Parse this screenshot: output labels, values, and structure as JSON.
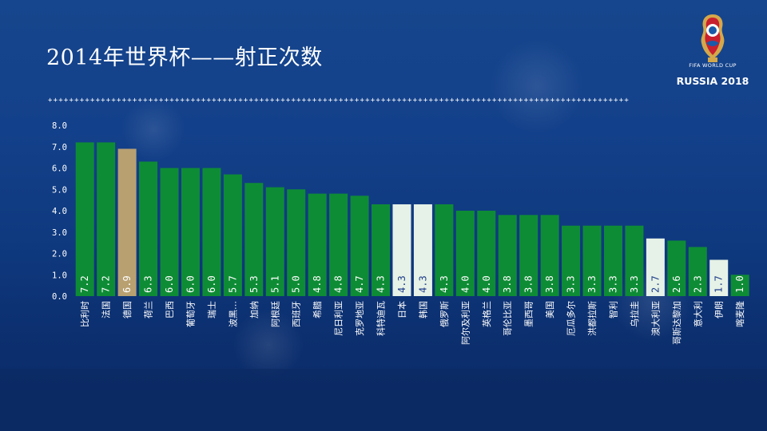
{
  "slide": {
    "title": "2014年世界杯——射正次数"
  },
  "logo": {
    "line1": "FIFA WORLD CUP",
    "line2": "RUSSIA 2018"
  },
  "divider_glyph": "+",
  "colors": {
    "bar_green": "#0e8c35",
    "bar_gold": "#b8a071",
    "bar_light": "#e6f2e7",
    "axis_text": "#ffffff",
    "value_text": "#ffffff",
    "value_text_dark": "#1d3c8a"
  },
  "chart_data": {
    "type": "bar",
    "title": "",
    "xlabel": "",
    "ylabel": "",
    "ylim": [
      0,
      8
    ],
    "yticks": [
      "0.0",
      "1.0",
      "2.0",
      "3.0",
      "4.0",
      "5.0",
      "6.0",
      "7.0",
      "8.0"
    ],
    "grid": false,
    "legend": "none",
    "categories": [
      "比利时",
      "法国",
      "德国",
      "荷兰",
      "巴西",
      "葡萄牙",
      "瑞士",
      "波黑…",
      "加纳",
      "阿根廷",
      "西班牙",
      "希腊",
      "尼日利亚",
      "克罗地亚",
      "科特迪瓦",
      "日本",
      "韩国",
      "俄罗斯",
      "阿尔及利亚",
      "英格兰",
      "哥伦比亚",
      "墨西哥",
      "美国",
      "厄瓜多尔",
      "洪都拉斯",
      "智利",
      "乌拉圭",
      "澳大利亚",
      "哥斯达黎加",
      "意大利",
      "伊朗",
      "喀麦隆"
    ],
    "values": [
      7.2,
      7.2,
      6.9,
      6.3,
      6.0,
      6.0,
      6.0,
      5.7,
      5.3,
      5.1,
      5.0,
      4.8,
      4.8,
      4.7,
      4.3,
      4.3,
      4.3,
      4.3,
      4.0,
      4.0,
      3.8,
      3.8,
      3.8,
      3.3,
      3.3,
      3.3,
      3.3,
      2.7,
      2.6,
      2.3,
      1.7,
      1.0
    ],
    "value_labels": [
      "7.2",
      "7.2",
      "6.9",
      "6.3",
      "6.0",
      "6.0",
      "6.0",
      "5.7",
      "5.3",
      "5.1",
      "5.0",
      "4.8",
      "4.8",
      "4.7",
      "4.3",
      "4.3",
      "4.3",
      "4.3",
      "4.0",
      "4.0",
      "3.8",
      "3.8",
      "3.8",
      "3.3",
      "3.3",
      "3.3",
      "3.3",
      "2.7",
      "2.6",
      "2.3",
      "1.7",
      "1.0"
    ],
    "bar_colors": [
      "green",
      "green",
      "gold",
      "green",
      "green",
      "green",
      "green",
      "green",
      "green",
      "green",
      "green",
      "green",
      "green",
      "green",
      "green",
      "light",
      "light",
      "green",
      "green",
      "green",
      "green",
      "green",
      "green",
      "green",
      "green",
      "green",
      "green",
      "light",
      "green",
      "green",
      "light",
      "green"
    ]
  }
}
